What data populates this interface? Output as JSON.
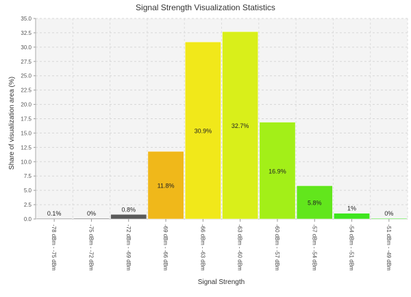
{
  "chart_data": {
    "type": "bar",
    "title": "Signal Strength Visualization Statistics",
    "xlabel": "Signal Strength",
    "ylabel": "Share of visualization area (%)",
    "ylim": [
      0,
      35
    ],
    "yticks": [
      "0.0",
      "2.5",
      "5.0",
      "7.5",
      "10.0",
      "12.5",
      "15.0",
      "17.5",
      "20.0",
      "22.5",
      "25.0",
      "27.5",
      "30.0",
      "32.5",
      "35.0"
    ],
    "grid": true,
    "categories": [
      "-78 dBm - -75 dBm",
      "-75 dBm - -72 dBm",
      "-72 dBm - -69 dBm",
      "-69 dBm - -66 dBm",
      "-66 dBm - -63 dBm",
      "-63 dBm - -60 dBm",
      "-60 dBm - -57 dBm",
      "-57 dBm - -54 dBm",
      "-54 dBm - -51 dBm",
      "-51 dBm - -49 dBm"
    ],
    "values": [
      0.1,
      0,
      0.8,
      11.8,
      30.9,
      32.7,
      16.9,
      5.8,
      1.0,
      0
    ],
    "labels": [
      "0.1%",
      "0%",
      "0.8%",
      "11.8%",
      "30.9%",
      "32.7%",
      "16.9%",
      "5.8%",
      "1%",
      "0%"
    ],
    "colors": [
      "#7a7a7a",
      "#555555",
      "#5a5a5a",
      "#f0b81a",
      "#f1e81a",
      "#d9ef1a",
      "#a3ef18",
      "#62e61c",
      "#3ee51e",
      "#3ee51e"
    ]
  }
}
